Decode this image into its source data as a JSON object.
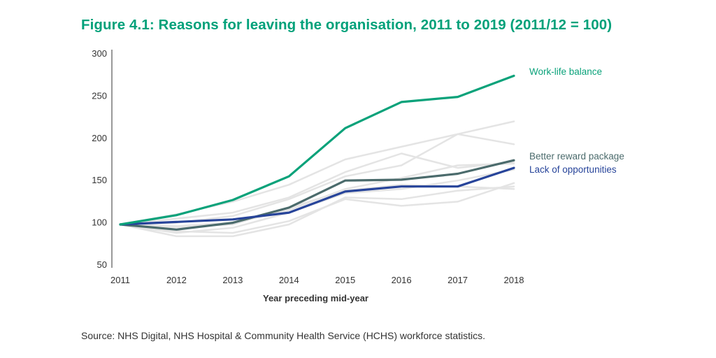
{
  "title": "Figure 4.1: Reasons for leaving the organisation, 2011 to 2019 (2011/12 = 100)",
  "source": "Source: NHS Digital, NHS Hospital & Community Health Service (HCHS) workforce statistics.",
  "colors": {
    "title": "#00a17a",
    "work_life_balance": "#0aa27a",
    "better_reward_package": "#4b6b6c",
    "lack_of_opportunities": "#27449a",
    "other_reasons": "#e4e4e4",
    "axis": "#333333"
  },
  "chart_data": {
    "type": "line",
    "xlabel": "Year preceding mid-year",
    "ylabel": "",
    "x": [
      "2011",
      "2012",
      "2013",
      "2014",
      "2015",
      "2016",
      "2017",
      "2018"
    ],
    "ylim": [
      50,
      300
    ],
    "yticks": [
      50,
      100,
      150,
      200,
      250,
      300
    ],
    "grid": false,
    "background_series": [
      {
        "values": [
          98,
          110,
          125,
          145,
          175,
          190,
          205,
          220
        ]
      },
      {
        "values": [
          98,
          105,
          112,
          130,
          160,
          182,
          165,
          172
        ]
      },
      {
        "values": [
          98,
          100,
          108,
          128,
          155,
          168,
          205,
          193
        ]
      },
      {
        "values": [
          98,
          96,
          100,
          115,
          140,
          153,
          168,
          170
        ]
      },
      {
        "values": [
          98,
          88,
          94,
          112,
          135,
          140,
          150,
          163
        ]
      },
      {
        "values": [
          98,
          84,
          84,
          98,
          130,
          128,
          138,
          143
        ]
      },
      {
        "values": [
          98,
          90,
          88,
          102,
          128,
          120,
          125,
          147
        ]
      },
      {
        "values": [
          98,
          95,
          98,
          118,
          138,
          145,
          143,
          140
        ]
      }
    ],
    "series": [
      {
        "name": "Work-life balance",
        "values": [
          98,
          109,
          127,
          155,
          212,
          243,
          249,
          274
        ]
      },
      {
        "name": "Better reward package",
        "values": [
          98,
          92,
          100,
          118,
          150,
          151,
          158,
          174
        ]
      },
      {
        "name": "Lack of opportunities",
        "values": [
          98,
          101,
          104,
          112,
          137,
          143,
          143,
          165
        ]
      }
    ]
  }
}
